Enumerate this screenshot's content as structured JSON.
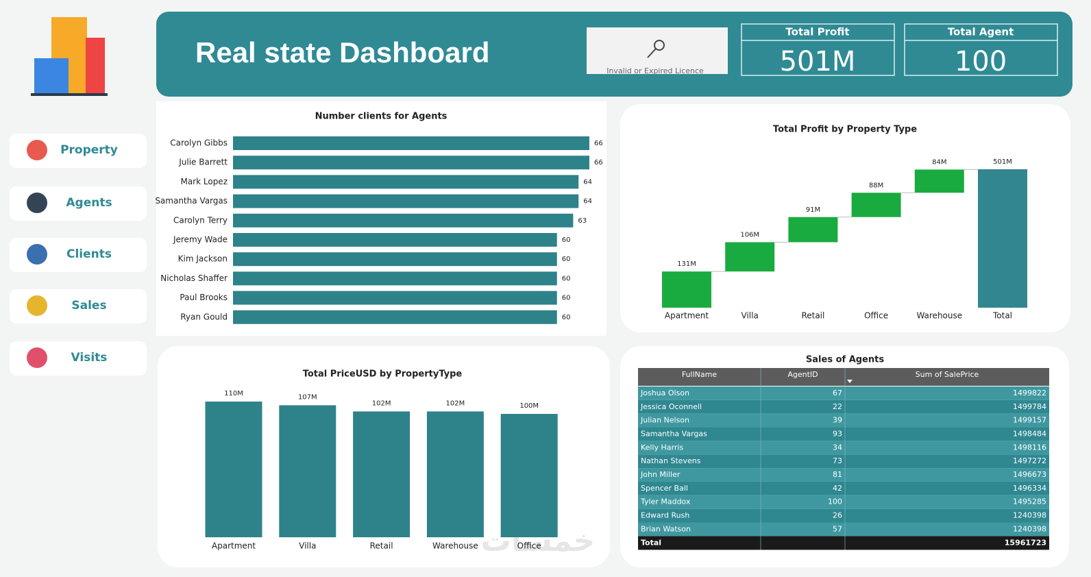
{
  "header": {
    "title": "Real state Dashboard",
    "licence": "Invalid or Expired Licence"
  },
  "kpis": [
    {
      "label": "Total Profit",
      "value": "501M"
    },
    {
      "label": "Total Agent",
      "value": "100"
    }
  ],
  "nav": [
    "Property",
    "Agents",
    "Clients",
    "Sales",
    "Visits"
  ],
  "chart_data": [
    {
      "type": "barh",
      "title": "Number clients for Agents",
      "categories": [
        "Carolyn Gibbs",
        "Julie Barrett",
        "Mark Lopez",
        "Samantha Vargas",
        "Carolyn Terry",
        "Jeremy Wade",
        "Kim Jackson",
        "Nicholas Shaffer",
        "Paul Brooks",
        "Ryan Gould"
      ],
      "values": [
        66,
        66,
        64,
        64,
        63,
        60,
        60,
        60,
        60,
        60
      ],
      "color": "#2e828a"
    },
    {
      "type": "waterfall",
      "title": "Total Profit by Property Type",
      "categories": [
        "Apartment",
        "Villa",
        "Retail",
        "Office",
        "Warehouse"
      ],
      "values": [
        131,
        106,
        91,
        88,
        84
      ],
      "value_labels": [
        "131M",
        "106M",
        "91M",
        "88M",
        "84M"
      ],
      "total": {
        "label": "Total",
        "value": 501,
        "value_label": "501M"
      },
      "color": "#1aab40",
      "total_color": "#31868f"
    },
    {
      "type": "bar",
      "title": "Total PriceUSD by PropertyType",
      "categories": [
        "Apartment",
        "Villa",
        "Retail",
        "Warehouse",
        "Office"
      ],
      "values": [
        110,
        107,
        102,
        102,
        100
      ],
      "value_labels": [
        "110M",
        "107M",
        "102M",
        "102M",
        "100M"
      ],
      "color": "#2e828a"
    }
  ],
  "table": {
    "title": "Sales of Agents",
    "columns": [
      "FullName",
      "AgentID",
      "Sum of SalePrice"
    ],
    "rows": [
      [
        "Joshua Olson",
        67,
        1499822
      ],
      [
        "Jessica Oconnell",
        22,
        1499784
      ],
      [
        "Julian Nelson",
        39,
        1499157
      ],
      [
        "Samantha Vargas",
        93,
        1498484
      ],
      [
        "Kelly Harris",
        34,
        1498116
      ],
      [
        "Nathan Stevens",
        73,
        1497272
      ],
      [
        "John Miller",
        81,
        1496673
      ],
      [
        "Spencer Ball",
        42,
        1496334
      ],
      [
        "Tyler Maddox",
        100,
        1495285
      ],
      [
        "Edward Rush",
        26,
        1240398
      ],
      [
        "Brian Watson",
        57,
        1240398
      ]
    ],
    "total": {
      "label": "Total",
      "sum": 15961723
    }
  },
  "watermark": "خمسات"
}
